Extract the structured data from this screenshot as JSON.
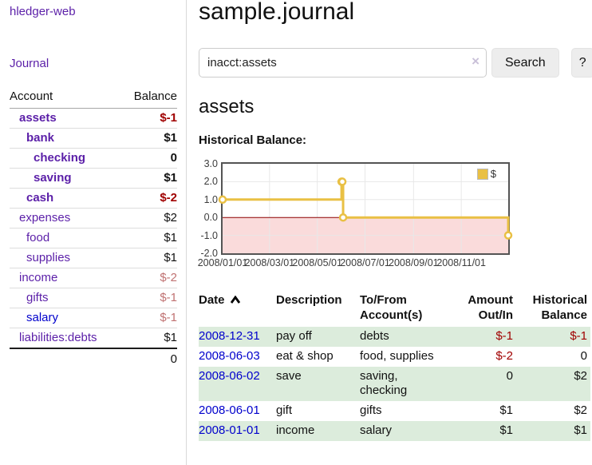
{
  "sidebar": {
    "brand": "hledger-web",
    "journal_link": "Journal",
    "accounts_table": {
      "headers": {
        "account": "Account",
        "balance": "Balance"
      },
      "rows": [
        {
          "label": "assets",
          "depth": 1,
          "bold": true,
          "balance": "$-1",
          "balance_style": "neg"
        },
        {
          "label": "bank",
          "depth": 2,
          "bold": true,
          "balance": "$1",
          "balance_style": ""
        },
        {
          "label": "checking",
          "depth": 3,
          "bold": true,
          "balance": "0",
          "balance_style": ""
        },
        {
          "label": "saving",
          "depth": 3,
          "bold": true,
          "balance": "$1",
          "balance_style": ""
        },
        {
          "label": "cash",
          "depth": 2,
          "bold": true,
          "balance": "$-2",
          "balance_style": "neg"
        },
        {
          "label": "expenses",
          "depth": 1,
          "bold": false,
          "balance": "$2",
          "balance_style": ""
        },
        {
          "label": "food",
          "depth": 2,
          "bold": false,
          "balance": "$1",
          "balance_style": ""
        },
        {
          "label": "supplies",
          "depth": 2,
          "bold": false,
          "balance": "$1",
          "balance_style": ""
        },
        {
          "label": "income",
          "depth": 1,
          "bold": false,
          "balance": "$-2",
          "balance_style": "soft"
        },
        {
          "label": "gifts",
          "depth": 2,
          "bold": false,
          "balance": "$-1",
          "balance_style": "soft"
        },
        {
          "label": "salary",
          "depth": 2,
          "bold": false,
          "color": "blue",
          "balance": "$-1",
          "balance_style": "soft"
        },
        {
          "label": "liabilities:debts",
          "depth": 1,
          "bold": false,
          "balance": "$1",
          "balance_style": ""
        }
      ],
      "total": "0"
    }
  },
  "header": {
    "title": "sample.journal"
  },
  "search": {
    "query": "inacct:assets",
    "clear_icon": "×",
    "button_label": "Search",
    "help_label": "?"
  },
  "account_page": {
    "heading": "assets",
    "chart_label": "Historical Balance:"
  },
  "chart_data": {
    "type": "line",
    "title": "Historical Balance",
    "style": "steps",
    "legend": "$",
    "legend_position": "top-right",
    "grid": true,
    "ylim": [
      -2,
      3
    ],
    "xlim_days": [
      0,
      365
    ],
    "yticks": [
      {
        "label": "3.0",
        "value": 3
      },
      {
        "label": "2.0",
        "value": 2
      },
      {
        "label": "1.0",
        "value": 1
      },
      {
        "label": "0.0",
        "value": 0
      },
      {
        "label": "-1.0",
        "value": -1
      },
      {
        "label": "-2.0",
        "value": -2
      }
    ],
    "xticks": [
      {
        "label": "2008/01/01",
        "day": 0
      },
      {
        "label": "2008/03/01",
        "day": 60
      },
      {
        "label": "2008/05/01",
        "day": 121
      },
      {
        "label": "2008/07/01",
        "day": 182
      },
      {
        "label": "2008/09/01",
        "day": 244
      },
      {
        "label": "2008/11/01",
        "day": 305
      }
    ],
    "series": [
      {
        "name": "$",
        "color": "#e9c044",
        "points": [
          {
            "date": "2008-01-01",
            "day": 0,
            "value": 1
          },
          {
            "date": "2008-06-01",
            "day": 152,
            "value": 2
          },
          {
            "date": "2008-06-02",
            "day": 153,
            "value": 2
          },
          {
            "date": "2008-06-03",
            "day": 154,
            "value": 0
          },
          {
            "date": "2008-12-31",
            "day": 365,
            "value": -1
          }
        ]
      }
    ],
    "zero_line_color": "#8b0000",
    "negative_fill": "#fadbdb",
    "grid_color": "#e8e8e8"
  },
  "register_table": {
    "headers": {
      "date": "Date",
      "sort_icon": "caret-up",
      "description": "Description",
      "accounts": "To/From Account(s)",
      "amount": "Amount Out/In",
      "balance": "Historical Balance"
    },
    "rows": [
      {
        "date": "2008-12-31",
        "description": "pay off",
        "accounts": "debts",
        "amount": "$-1",
        "amount_style": "neg",
        "balance": "$-1",
        "balance_style": "neg"
      },
      {
        "date": "2008-06-03",
        "description": "eat & shop",
        "accounts": "food, supplies",
        "amount": "$-2",
        "amount_style": "neg",
        "balance": "0",
        "balance_style": ""
      },
      {
        "date": "2008-06-02",
        "description": "save",
        "accounts": "saving, checking",
        "amount": "0",
        "amount_style": "",
        "balance": "$2",
        "balance_style": ""
      },
      {
        "date": "2008-06-01",
        "description": "gift",
        "accounts": "gifts",
        "amount": "$1",
        "amount_style": "",
        "balance": "$2",
        "balance_style": ""
      },
      {
        "date": "2008-01-01",
        "description": "income",
        "accounts": "salary",
        "amount": "$1",
        "amount_style": "",
        "balance": "$1",
        "balance_style": ""
      }
    ]
  },
  "colors": {
    "brand_purple": "#5b1fa8",
    "link_blue": "#0000cc",
    "negative_red": "#a00000",
    "soft_red": "#c07272",
    "row_stripe_green": "#dcecdc",
    "chart_gold": "#e9c044",
    "chart_negative_pink": "#fadbdb",
    "chart_zero_line": "#8b0000"
  }
}
